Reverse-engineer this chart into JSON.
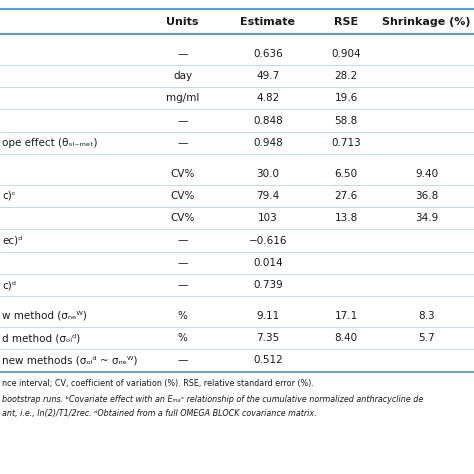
{
  "col_headers": [
    "Units",
    "Estimate",
    "RSE",
    "Shrinkage (%)"
  ],
  "rows": [
    {
      "label": "",
      "units": "",
      "estimate": "",
      "rse": "",
      "shrinkage": "",
      "type": "section_blank"
    },
    {
      "label": "",
      "units": "—",
      "estimate": "0.636",
      "rse": "0.904",
      "shrinkage": "",
      "type": "data"
    },
    {
      "label": "",
      "units": "day",
      "estimate": "49.7",
      "rse": "28.2",
      "shrinkage": "",
      "type": "data"
    },
    {
      "label": "",
      "units": "mg/ml",
      "estimate": "4.82",
      "rse": "19.6",
      "shrinkage": "",
      "type": "data"
    },
    {
      "label": "",
      "units": "—",
      "estimate": "0.848",
      "rse": "58.8",
      "shrinkage": "",
      "type": "data"
    },
    {
      "label": "ope effect (θₛₗ₋ₘₑₜ)",
      "units": "—",
      "estimate": "0.948",
      "rse": "0.713",
      "shrinkage": "",
      "type": "data"
    },
    {
      "label": "",
      "units": "",
      "estimate": "",
      "rse": "",
      "shrinkage": "",
      "type": "section_blank"
    },
    {
      "label": "",
      "units": "CV%",
      "estimate": "30.0",
      "rse": "6.50",
      "shrinkage": "9.40",
      "type": "data"
    },
    {
      "label": "c)ᶜ",
      "units": "CV%",
      "estimate": "79.4",
      "rse": "27.6",
      "shrinkage": "36.8",
      "type": "data"
    },
    {
      "label": "",
      "units": "CV%",
      "estimate": "103",
      "rse": "13.8",
      "shrinkage": "34.9",
      "type": "data"
    },
    {
      "label": "ec)ᵈ",
      "units": "—",
      "estimate": "−0.616",
      "rse": "",
      "shrinkage": "",
      "type": "data"
    },
    {
      "label": "",
      "units": "—",
      "estimate": "0.014",
      "rse": "",
      "shrinkage": "",
      "type": "data"
    },
    {
      "label": "c)ᵈ",
      "units": "—",
      "estimate": "0.739",
      "rse": "",
      "shrinkage": "",
      "type": "data"
    },
    {
      "label": "",
      "units": "",
      "estimate": "",
      "rse": "",
      "shrinkage": "",
      "type": "section_blank"
    },
    {
      "label": "w method (σₙₑᵂ)",
      "units": "%",
      "estimate": "9.11",
      "rse": "17.1",
      "shrinkage": "8.3",
      "type": "data"
    },
    {
      "label": "d method (σₒₗᵈ)",
      "units": "%",
      "estimate": "7.35",
      "rse": "8.40",
      "shrinkage": "5.7",
      "type": "data"
    },
    {
      "label": "new methods (σₒₗᵈ ~ σₙₑᵂ)",
      "units": "—",
      "estimate": "0.512",
      "rse": "",
      "shrinkage": "",
      "type": "data"
    }
  ],
  "footnote1": "nce interval; CV, coefficient of variation (%). RSE, relative standard error (%).",
  "footnote2": "bootstrap runs. ᵇCovariate effect with an Eₘₐˣ relationship of the cumulative normalized anthracycline de",
  "footnote3": "ant, i.e., ln(2)/T1/2rec. ᵈObtained from a full OMEGA BLOCK covariance matrix.",
  "header_line_color": "#5b9bd5",
  "row_line_color": "#add8e6",
  "bg_color": "#ffffff",
  "text_color": "#1a1a1a",
  "header_fontsize": 8,
  "data_fontsize": 7.5,
  "footnote_fontsize": 5.8
}
